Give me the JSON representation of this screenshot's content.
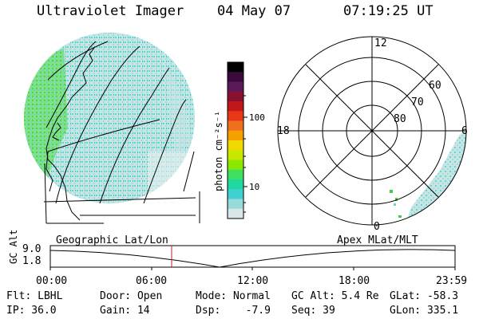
{
  "header": {
    "title": "Ultraviolet Imager",
    "date": "04 May 07",
    "time": "07:19:25 UT"
  },
  "colorbar": {
    "unit_label": "photon cm⁻²s⁻¹",
    "tick_labels": [
      "100",
      "10"
    ],
    "colors": [
      "#000000",
      "#3a0a3a",
      "#5a1a5a",
      "#8a1030",
      "#c01818",
      "#e83818",
      "#f07020",
      "#f6a000",
      "#f0d800",
      "#c8e800",
      "#8ae800",
      "#3ee060",
      "#20d8a0",
      "#40d0d0",
      "#9adada",
      "#d8e8e8"
    ]
  },
  "polar": {
    "mlt_labels": [
      "12",
      "18",
      "6",
      "0"
    ],
    "lat_labels": [
      "60",
      "70",
      "80"
    ]
  },
  "orbit": {
    "left_caption": "Geographic Lat/Lon",
    "right_caption": "Apex MLat/MLT",
    "axis_label": "GC Alt",
    "y_ticks": [
      "9.0",
      "1.8"
    ],
    "time_ticks": [
      "00:00",
      "06:00",
      "12:00",
      "18:00",
      "23:59"
    ],
    "marker_color": "#c02020"
  },
  "status": {
    "flt": "Flt: LBHL",
    "ip": "IP: 36.0",
    "door": "Door: Open",
    "gain": "Gain: 14",
    "mode": "Mode: Normal",
    "dsp": "Dsp:    -7.9",
    "gcalt": "GC Alt: 5.4 Re",
    "seq": "Seq: 39",
    "glat": "GLat: -58.3",
    "glon": "GLon: 335.1"
  }
}
